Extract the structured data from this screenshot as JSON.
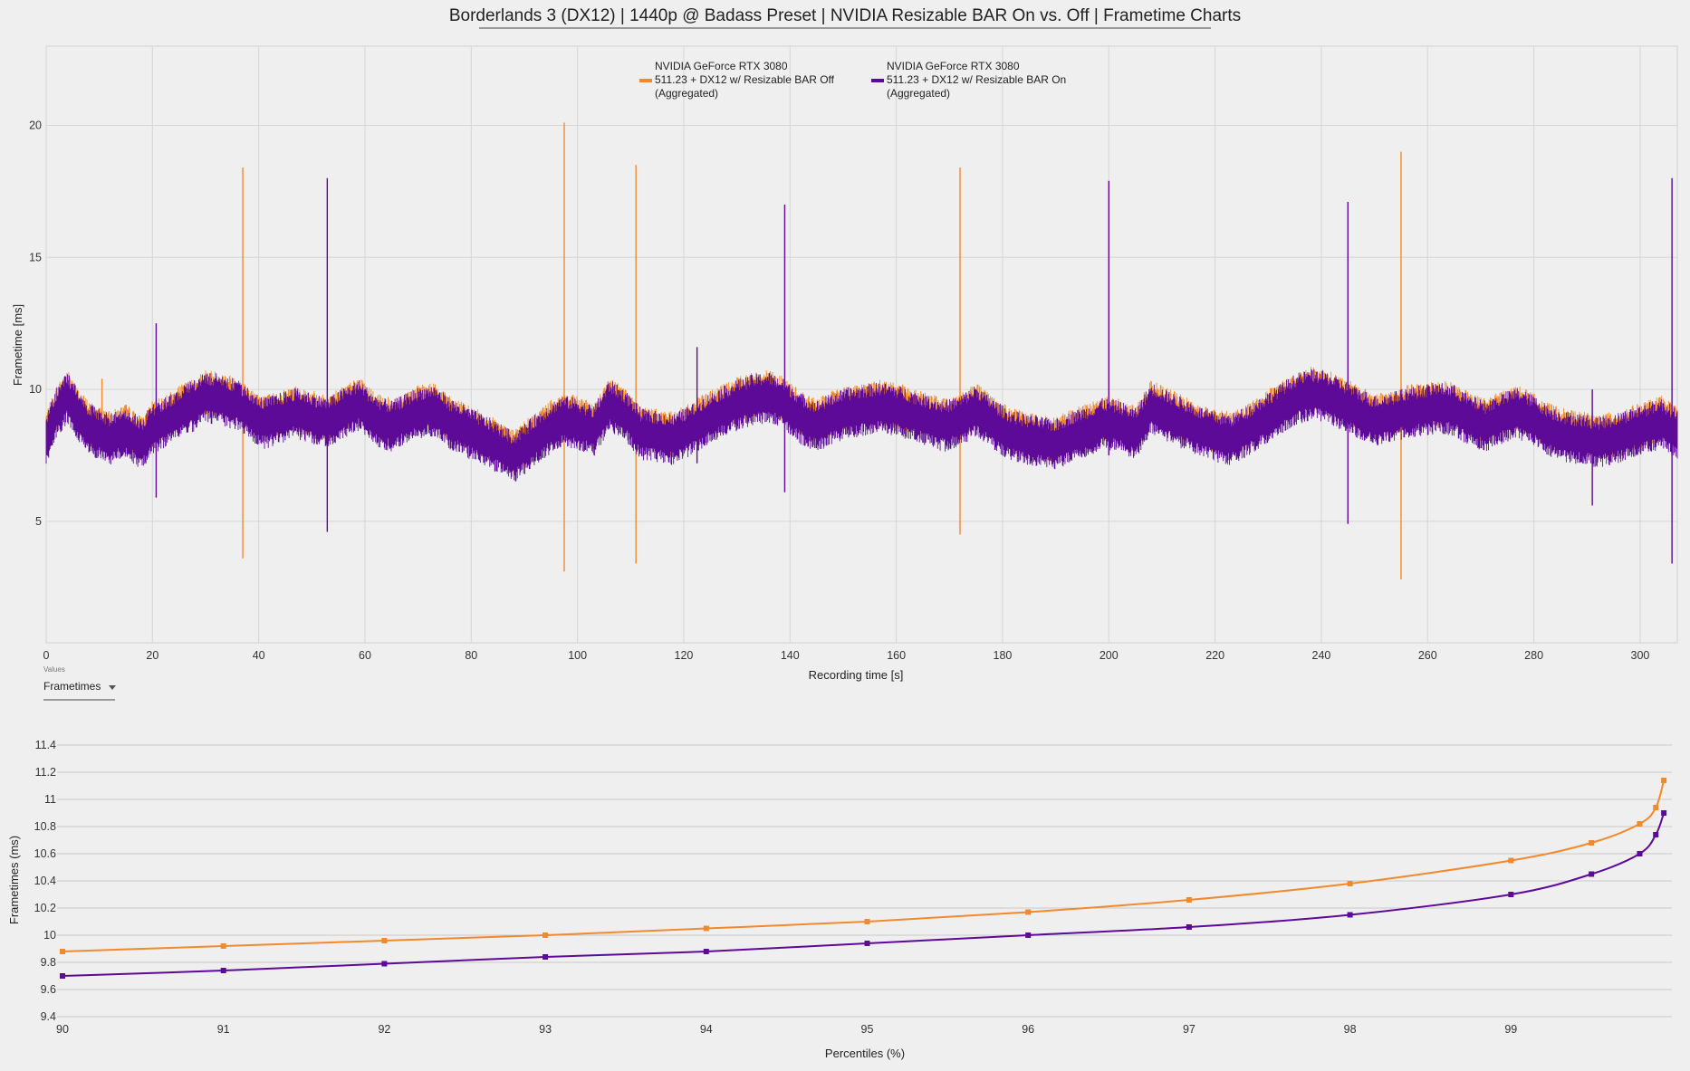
{
  "title": "Borderlands 3 (DX12) | 1440p @ Badass Preset | NVIDIA Resizable BAR On vs. Off | Frametime Charts",
  "colors": {
    "bar_off": "#f08a2c",
    "bar_on": "#5d0a99",
    "grid": "#d6d6d6",
    "background": "#efefef"
  },
  "legend": [
    {
      "lines": [
        "NVIDIA GeForce RTX 3080",
        "511.23 + DX12 w/ Resizable BAR Off",
        "(Aggregated)"
      ],
      "color": "#f08a2c"
    },
    {
      "lines": [
        "NVIDIA GeForce RTX 3080",
        "511.23 + DX12 w/ Resizable BAR On",
        "(Aggregated)"
      ],
      "color": "#5d0a99"
    }
  ],
  "controls": {
    "values_label": "Values",
    "selector_value": "Frametimes",
    "selector_icon": "caret-down-icon"
  },
  "chart_data": [
    {
      "type": "line",
      "xlabel": "Recording time [s]",
      "ylabel": "Frametime [ms]",
      "xlim": [
        0,
        307
      ],
      "ylim": [
        0.4,
        23
      ],
      "x_ticks": [
        0,
        20,
        40,
        60,
        80,
        100,
        120,
        140,
        160,
        180,
        200,
        220,
        240,
        260,
        280,
        300
      ],
      "y_ticks": [
        5,
        10,
        15,
        20
      ],
      "grid": true,
      "legend_position": "top-center",
      "series": [
        {
          "name": "NVIDIA GeForce RTX 3080 511.23 + DX12 w/ Resizable BAR Off (Aggregated)",
          "color": "#f08a2c",
          "baseline": {
            "x": [
              0,
              2,
              4,
              6,
              8,
              12,
              15,
              18,
              20,
              23,
              26,
              28,
              30,
              33,
              36,
              38,
              41,
              44,
              47,
              50,
              53,
              56,
              59,
              62,
              65,
              68,
              70,
              73,
              76,
              79,
              82,
              85,
              88,
              91,
              94,
              97,
              100,
              103,
              106,
              109,
              112,
              115,
              118,
              121,
              124,
              127,
              130,
              133,
              136,
              139,
              142,
              145,
              148,
              151,
              154,
              157,
              160,
              163,
              166,
              169,
              172,
              175,
              178,
              181,
              184,
              187,
              190,
              193,
              196,
              199,
              202,
              205,
              208,
              211,
              214,
              217,
              220,
              223,
              226,
              229,
              232,
              235,
              238,
              241,
              244,
              247,
              250,
              253,
              256,
              259,
              262,
              265,
              268,
              271,
              274,
              277,
              280,
              283,
              286,
              289,
              292,
              295,
              298,
              301,
              304,
              307
            ],
            "y": [
              8.3,
              9.3,
              9.9,
              9.2,
              8.7,
              8.3,
              8.6,
              8.1,
              8.7,
              9.0,
              9.4,
              9.6,
              9.9,
              9.8,
              9.6,
              9.3,
              8.9,
              9.1,
              9.3,
              9.1,
              8.9,
              9.3,
              9.6,
              9.0,
              8.8,
              9.1,
              9.3,
              9.4,
              8.9,
              8.6,
              8.3,
              8.0,
              7.6,
              8.1,
              8.6,
              9.0,
              8.9,
              8.6,
              9.6,
              9.2,
              8.5,
              8.4,
              8.3,
              8.6,
              9.0,
              9.3,
              9.6,
              9.8,
              9.9,
              9.6,
              9.1,
              8.8,
              9.1,
              9.3,
              9.4,
              9.5,
              9.4,
              9.2,
              9.0,
              8.8,
              9.0,
              9.4,
              8.9,
              8.5,
              8.3,
              8.2,
              8.1,
              8.4,
              8.6,
              8.9,
              8.8,
              8.5,
              9.5,
              9.2,
              8.9,
              8.6,
              8.4,
              8.3,
              8.6,
              9.0,
              9.4,
              9.8,
              10.0,
              9.9,
              9.6,
              9.3,
              9.0,
              9.1,
              9.3,
              9.4,
              9.5,
              9.4,
              9.0,
              8.8,
              9.1,
              9.3,
              9.0,
              8.6,
              8.4,
              8.3,
              8.2,
              8.3,
              8.5,
              8.7,
              8.9,
              8.5
            ]
          },
          "spikes": [
            {
              "x": 10.5,
              "high": 10.4,
              "low": 8.0
            },
            {
              "x": 37.0,
              "high": 18.4,
              "low": 3.6
            },
            {
              "x": 97.5,
              "high": 20.1,
              "low": 3.1
            },
            {
              "x": 111.0,
              "high": 18.5,
              "low": 3.4
            },
            {
              "x": 172.0,
              "high": 18.4,
              "low": 4.5
            },
            {
              "x": 255.0,
              "high": 19.0,
              "low": 2.8
            }
          ]
        },
        {
          "name": "NVIDIA GeForce RTX 3080 511.23 + DX12 w/ Resizable BAR On (Aggregated)",
          "color": "#5d0a99",
          "baseline": {
            "x": [
              0,
              2,
              4,
              6,
              8,
              12,
              15,
              18,
              20,
              23,
              26,
              28,
              30,
              33,
              36,
              38,
              41,
              44,
              47,
              50,
              53,
              56,
              59,
              62,
              65,
              68,
              70,
              73,
              76,
              79,
              82,
              85,
              88,
              91,
              94,
              97,
              100,
              103,
              106,
              109,
              112,
              115,
              118,
              121,
              124,
              127,
              130,
              133,
              136,
              139,
              142,
              145,
              148,
              151,
              154,
              157,
              160,
              163,
              166,
              169,
              172,
              175,
              178,
              181,
              184,
              187,
              190,
              193,
              196,
              199,
              202,
              205,
              208,
              211,
              214,
              217,
              220,
              223,
              226,
              229,
              232,
              235,
              238,
              241,
              244,
              247,
              250,
              253,
              256,
              259,
              262,
              265,
              268,
              271,
              274,
              277,
              280,
              283,
              286,
              289,
              292,
              295,
              298,
              301,
              304,
              307
            ],
            "y": [
              8.1,
              9.1,
              9.7,
              9.0,
              8.5,
              8.1,
              8.4,
              7.9,
              8.5,
              8.8,
              9.2,
              9.4,
              9.7,
              9.6,
              9.4,
              9.1,
              8.7,
              8.9,
              9.1,
              8.9,
              8.7,
              9.1,
              9.4,
              8.8,
              8.6,
              8.9,
              9.1,
              9.2,
              8.7,
              8.4,
              8.1,
              7.8,
              7.4,
              7.9,
              8.4,
              8.8,
              8.7,
              8.4,
              9.4,
              9.0,
              8.3,
              8.2,
              8.1,
              8.4,
              8.8,
              9.1,
              9.4,
              9.6,
              9.7,
              9.4,
              8.9,
              8.6,
              8.9,
              9.1,
              9.2,
              9.3,
              9.2,
              9.0,
              8.8,
              8.6,
              8.8,
              9.2,
              8.7,
              8.3,
              8.1,
              8.0,
              7.9,
              8.2,
              8.4,
              8.7,
              8.6,
              8.3,
              9.3,
              9.0,
              8.7,
              8.4,
              8.2,
              8.1,
              8.4,
              8.8,
              9.2,
              9.6,
              9.8,
              9.7,
              9.4,
              9.1,
              8.8,
              8.9,
              9.1,
              9.2,
              9.3,
              9.2,
              8.8,
              8.6,
              8.9,
              9.1,
              8.8,
              8.4,
              8.2,
              8.1,
              8.0,
              8.1,
              8.3,
              8.5,
              8.7,
              8.3
            ]
          },
          "spikes": [
            {
              "x": 20.7,
              "high": 12.5,
              "low": 5.9
            },
            {
              "x": 52.9,
              "high": 18.0,
              "low": 4.6
            },
            {
              "x": 122.5,
              "high": 11.6,
              "low": 7.2
            },
            {
              "x": 139.0,
              "high": 17.0,
              "low": 6.1
            },
            {
              "x": 200.0,
              "high": 17.9,
              "low": 7.5
            },
            {
              "x": 245.0,
              "high": 17.1,
              "low": 4.9
            },
            {
              "x": 291.0,
              "high": 10.0,
              "low": 5.6
            },
            {
              "x": 306.0,
              "high": 18.0,
              "low": 3.4
            }
          ]
        }
      ]
    },
    {
      "type": "line",
      "xlabel": "Percentiles (%)",
      "ylabel": "Frametimes (ms)",
      "xlim": [
        90,
        100
      ],
      "ylim": [
        9.4,
        11.4
      ],
      "x_ticks": [
        90,
        91,
        92,
        93,
        94,
        95,
        96,
        97,
        98,
        99
      ],
      "y_ticks": [
        9.4,
        9.6,
        9.8,
        10,
        10.2,
        10.4,
        10.6,
        10.8,
        11,
        11.2,
        11.4
      ],
      "grid": true,
      "series": [
        {
          "name": "NVIDIA GeForce RTX 3080 511.23 + DX12 w/ Resizable BAR Off (Aggregated)",
          "color": "#f08a2c",
          "x": [
            90,
            91,
            92,
            93,
            94,
            95,
            96,
            97,
            98,
            99,
            99.5,
            99.8,
            99.9,
            99.95
          ],
          "y": [
            9.88,
            9.92,
            9.96,
            10.0,
            10.05,
            10.1,
            10.17,
            10.26,
            10.38,
            10.55,
            10.68,
            10.82,
            10.94,
            11.14
          ]
        },
        {
          "name": "NVIDIA GeForce RTX 3080 511.23 + DX12 w/ Resizable BAR On (Aggregated)",
          "color": "#5d0a99",
          "x": [
            90,
            91,
            92,
            93,
            94,
            95,
            96,
            97,
            98,
            99,
            99.5,
            99.8,
            99.9,
            99.95
          ],
          "y": [
            9.7,
            9.74,
            9.79,
            9.84,
            9.88,
            9.94,
            10.0,
            10.06,
            10.15,
            10.3,
            10.45,
            10.6,
            10.74,
            10.9
          ]
        }
      ]
    }
  ]
}
